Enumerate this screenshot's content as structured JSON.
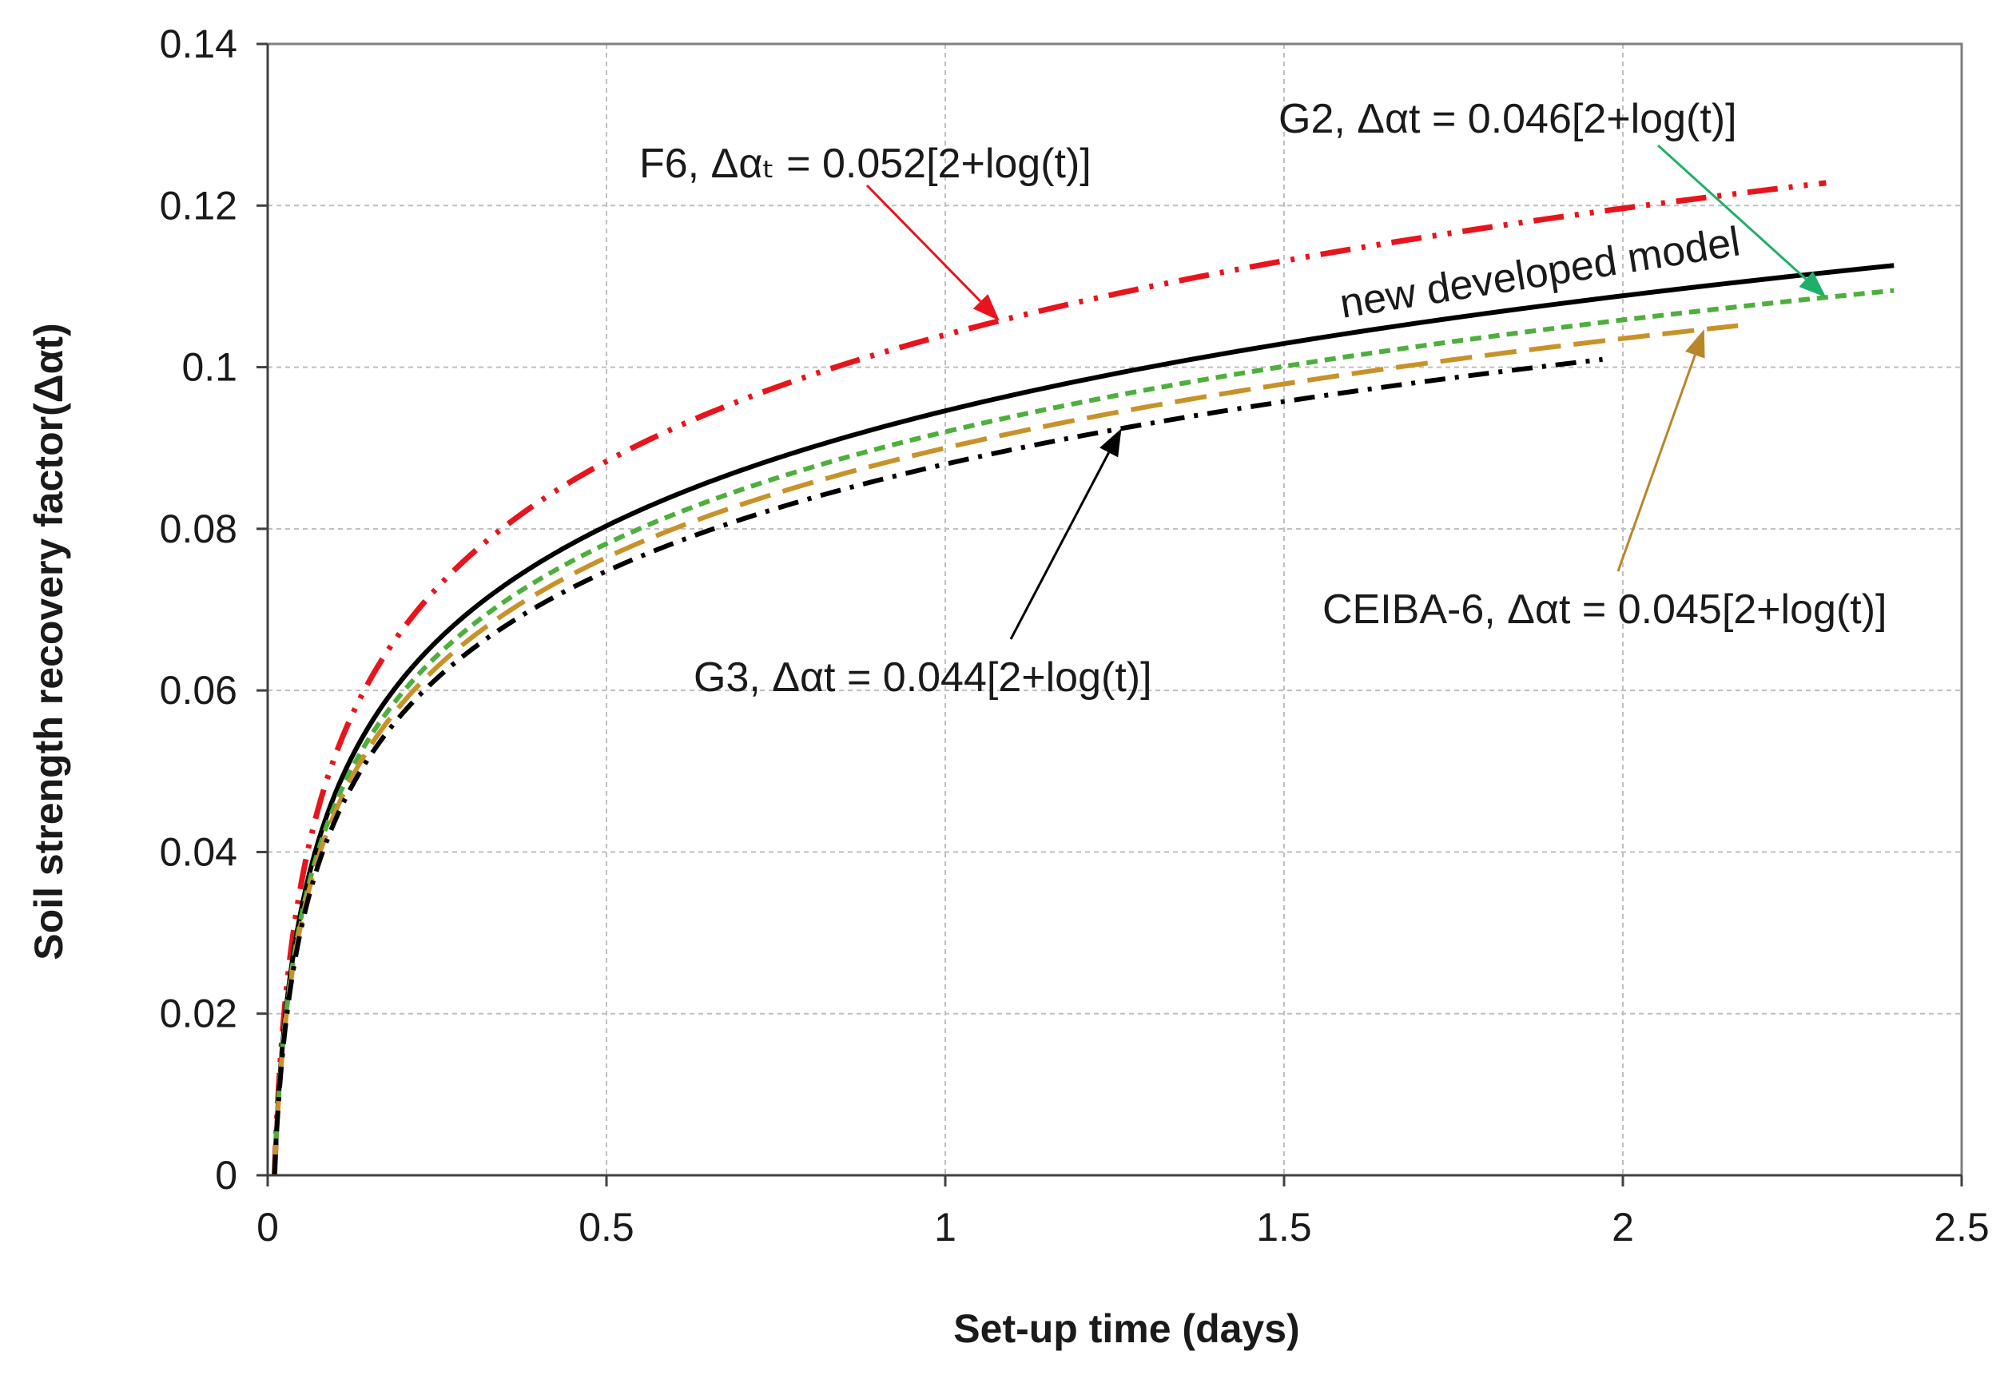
{
  "chart_data": {
    "type": "line",
    "title": "",
    "xlabel": "Set-up time (days)",
    "ylabel": "Soil strength recovery factor(Δαt)",
    "xlim": [
      0,
      2.5
    ],
    "ylim": [
      0,
      0.14
    ],
    "xticks": [
      "0",
      "0.5",
      "1",
      "1.5",
      "2",
      "2.5"
    ],
    "yticks": [
      "0",
      "0.02",
      "0.04",
      "0.06",
      "0.08",
      "0.1",
      "0.12",
      "0.14"
    ],
    "grid": true,
    "x_start": 0.01,
    "series": [
      {
        "name": "F6",
        "coefficient": 0.052,
        "x_end": 2.3,
        "color": "#e8141c",
        "dash": "dash-dot-dot"
      },
      {
        "name": "new developed model",
        "coefficient": 0.0473,
        "x_end": 2.4,
        "color": "#000000",
        "dash": "solid"
      },
      {
        "name": "G2",
        "coefficient": 0.046,
        "x_end": 2.4,
        "color": "#4daf3c",
        "dash": "short-dash"
      },
      {
        "name": "CEIBA-6",
        "coefficient": 0.045,
        "x_end": 2.17,
        "color": "#c8922a",
        "dash": "long-dash"
      },
      {
        "name": "G3",
        "coefficient": 0.044,
        "x_end": 1.97,
        "color": "#000000",
        "dash": "dash-dot"
      }
    ],
    "annotations": [
      {
        "text": "F6, Δαₜ = 0.052[2+log(t)]",
        "series": "F6",
        "arrow_color": "#e8141c"
      },
      {
        "text": "G2, Δαt = 0.046[2+log(t)]",
        "series": "G2",
        "arrow_color": "#1eb06a"
      },
      {
        "text": "new developed model",
        "series": "new developed model",
        "arrow_color": ""
      },
      {
        "text": "CEIBA-6, Δαt = 0.045[2+log(t)]",
        "series": "CEIBA-6",
        "arrow_color": "#b8862a"
      },
      {
        "text": "G3, Δαt = 0.044[2+log(t)]",
        "series": "G3",
        "arrow_color": "#000000"
      }
    ]
  }
}
